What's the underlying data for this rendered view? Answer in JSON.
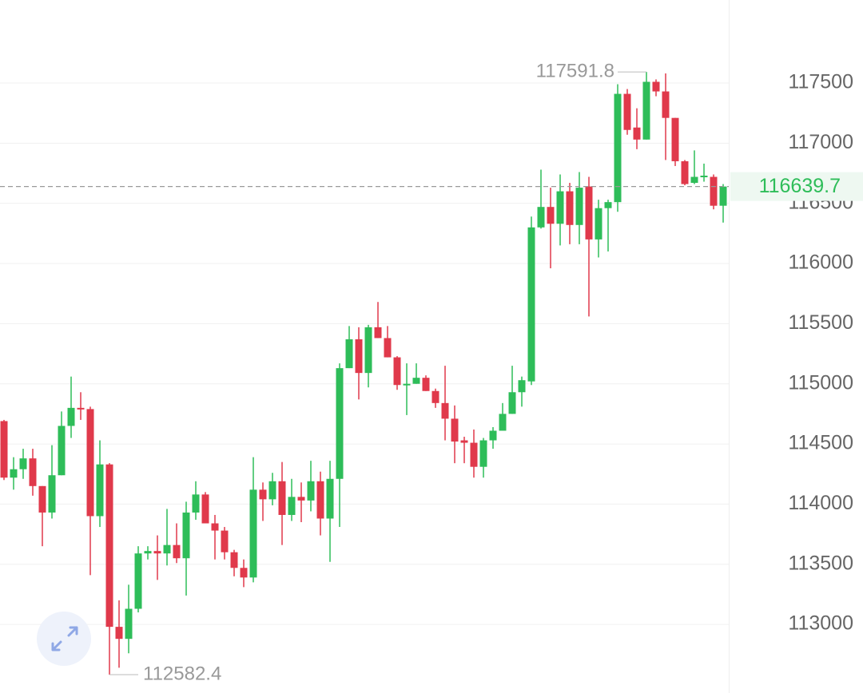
{
  "chart_data": {
    "type": "candlestick",
    "up_color": "#2ebd59",
    "down_color": "#e0394b",
    "ylim": [
      112430,
      118190
    ],
    "yticks": [
      113000,
      113500,
      114000,
      114500,
      115000,
      115500,
      116000,
      116500,
      117000,
      117500
    ],
    "grid": true,
    "last_price": 116639.7,
    "max_marker": 117591.8,
    "min_marker": 112582.4,
    "open": [
      114690,
      114220,
      114290,
      114380,
      114150,
      113930,
      114240,
      114650,
      114800,
      114790,
      113900,
      114330,
      112980,
      112880,
      113130,
      113590,
      113610,
      113590,
      113660,
      113550,
      113930,
      114080,
      113840,
      113780,
      113600,
      113470,
      113390,
      114120,
      114040,
      114190,
      113910,
      114060,
      114030,
      114190,
      113880,
      114210,
      115130,
      115370,
      115090,
      115470,
      115380,
      115220,
      114990,
      115000,
      115050,
      114940,
      114840,
      114710,
      114530,
      114510,
      114310,
      114530,
      114610,
      114750,
      114930,
      115020,
      116300,
      116470,
      116330,
      116600,
      116320,
      116640,
      116200,
      116460,
      116510,
      117410,
      117130,
      117030,
      117510,
      117430,
      117210,
      116850,
      116670,
      116720,
      116720,
      116480
    ],
    "high": [
      114700,
      114390,
      114460,
      114460,
      114150,
      114490,
      114770,
      115060,
      114930,
      114810,
      114530,
      114340,
      113200,
      113330,
      113650,
      113650,
      113740,
      113960,
      113840,
      114020,
      114190,
      114100,
      113910,
      113810,
      113620,
      113540,
      114390,
      114180,
      114260,
      114350,
      114210,
      114180,
      114360,
      114270,
      114360,
      115170,
      115480,
      115470,
      115490,
      115680,
      115480,
      115230,
      115170,
      115170,
      115070,
      114960,
      115150,
      114820,
      114560,
      114620,
      114550,
      114640,
      114840,
      115150,
      115060,
      116390,
      116780,
      116630,
      116740,
      116670,
      116760,
      116720,
      116530,
      116530,
      117490,
      117450,
      117290,
      117591.8,
      117530,
      117580,
      117210,
      116860,
      116940,
      116830,
      116740,
      116660
    ],
    "low": [
      114200,
      114120,
      114210,
      114070,
      113650,
      113880,
      114240,
      114550,
      114700,
      113410,
      113810,
      112582.4,
      112640,
      112760,
      113100,
      113540,
      113370,
      113490,
      113510,
      113240,
      113870,
      113840,
      113540,
      113540,
      113400,
      113310,
      113350,
      113860,
      113990,
      113660,
      113860,
      113850,
      113940,
      113740,
      113520,
      113810,
      115130,
      114870,
      114970,
      115380,
      115220,
      114950,
      114740,
      115000,
      114940,
      114800,
      114530,
      114340,
      114340,
      114220,
      114220,
      114460,
      114610,
      114750,
      114810,
      114990,
      116290,
      115960,
      116150,
      116160,
      116160,
      115560,
      116050,
      116100,
      116430,
      117070,
      116950,
      117030,
      117390,
      116860,
      116810,
      116650,
      116660,
      116680,
      116450,
      116340
    ],
    "close": [
      114220,
      114290,
      114380,
      114150,
      113930,
      114240,
      114650,
      114800,
      114790,
      113900,
      114330,
      112980,
      112880,
      113130,
      113590,
      113610,
      113590,
      113660,
      113550,
      113930,
      114080,
      113840,
      113780,
      113600,
      113470,
      113390,
      114120,
      114040,
      114190,
      113910,
      114060,
      114030,
      114190,
      113880,
      114210,
      115130,
      115370,
      115090,
      115470,
      115380,
      115220,
      114990,
      115000,
      115050,
      114940,
      114840,
      114710,
      114520,
      114510,
      114310,
      114530,
      114610,
      114750,
      114930,
      115030,
      116300,
      116470,
      116330,
      116600,
      116320,
      116630,
      116200,
      116460,
      116510,
      117410,
      117110,
      117030,
      117510,
      117430,
      117210,
      116850,
      116660,
      116720,
      116730,
      116480,
      116639.7
    ]
  }
}
